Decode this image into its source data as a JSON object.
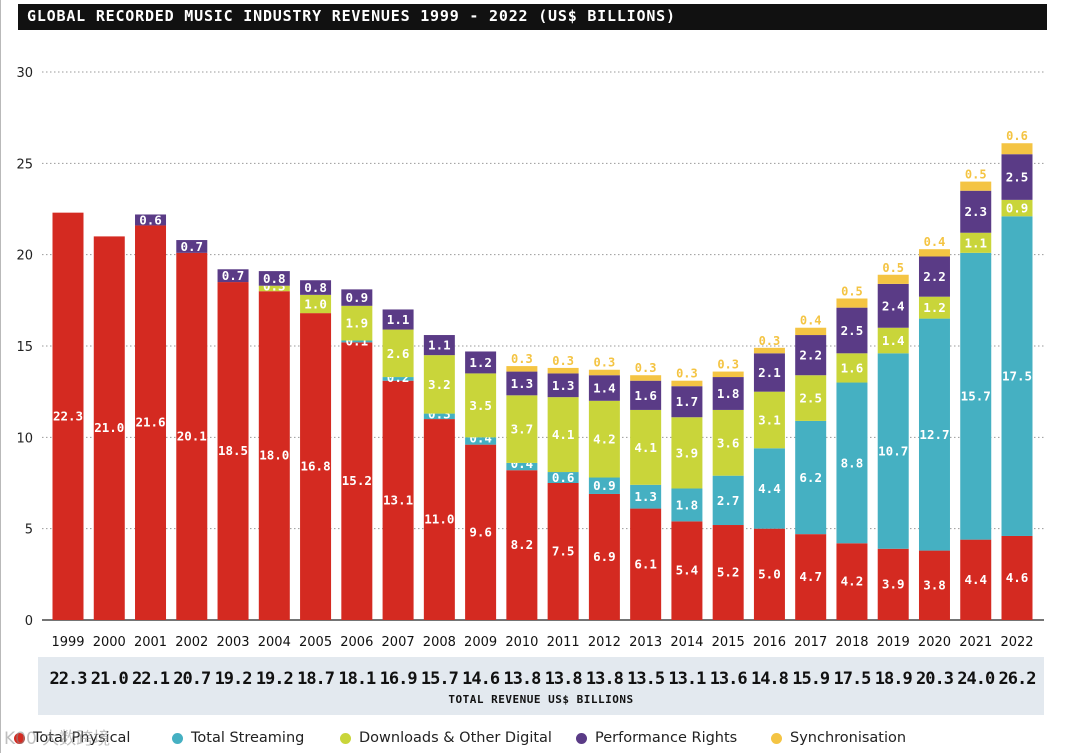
{
  "title": "GLOBAL RECORDED MUSIC INDUSTRY REVENUES 1999 - 2022 (US$ BILLIONS)",
  "totals_label": "TOTAL REVENUE US$ BILLIONS",
  "watermark": "K00 大数跨境",
  "colors": {
    "physical": "#d42a21",
    "streaming": "#45b0c2",
    "downloads": "#c9d53a",
    "performance": "#5a3b86",
    "sync": "#f4c443"
  },
  "chart_data": {
    "type": "bar",
    "stacked": true,
    "title": "GLOBAL RECORDED MUSIC INDUSTRY REVENUES 1999 - 2022 (US$ BILLIONS)",
    "ylim": [
      0,
      30
    ],
    "yticks": [
      0,
      5,
      10,
      15,
      20,
      25,
      30
    ],
    "grid": "horizontal dotted",
    "legend_position": "bottom",
    "categories": [
      "1999",
      "2000",
      "2001",
      "2002",
      "2003",
      "2004",
      "2005",
      "2006",
      "2007",
      "2008",
      "2009",
      "2010",
      "2011",
      "2012",
      "2013",
      "2014",
      "2015",
      "2016",
      "2017",
      "2018",
      "2019",
      "2020",
      "2021",
      "2022"
    ],
    "series": [
      {
        "key": "physical",
        "name": "Total Physical",
        "values": [
          22.3,
          21.0,
          21.6,
          20.1,
          18.5,
          18.0,
          16.8,
          15.2,
          13.1,
          11.0,
          9.6,
          8.2,
          7.5,
          6.9,
          6.1,
          5.4,
          5.2,
          5.0,
          4.7,
          4.2,
          3.9,
          3.8,
          4.4,
          4.6
        ]
      },
      {
        "key": "streaming",
        "name": "Total Streaming",
        "values": [
          null,
          null,
          null,
          null,
          null,
          null,
          null,
          0.1,
          0.2,
          0.3,
          0.4,
          0.4,
          0.6,
          0.9,
          1.3,
          1.8,
          2.7,
          4.4,
          6.2,
          8.8,
          10.7,
          12.7,
          15.7,
          17.5
        ]
      },
      {
        "key": "downloads",
        "name": "Downloads & Other Digital",
        "values": [
          null,
          null,
          null,
          null,
          null,
          0.3,
          1.0,
          1.9,
          2.6,
          3.2,
          3.5,
          3.7,
          4.1,
          4.2,
          4.1,
          3.9,
          3.6,
          3.1,
          2.5,
          1.6,
          1.4,
          1.2,
          1.1,
          0.9
        ]
      },
      {
        "key": "performance",
        "name": "Performance Rights",
        "values": [
          null,
          null,
          0.6,
          0.7,
          0.7,
          0.8,
          0.8,
          0.9,
          1.1,
          1.1,
          1.2,
          1.3,
          1.3,
          1.4,
          1.6,
          1.7,
          1.8,
          2.1,
          2.2,
          2.5,
          2.4,
          2.2,
          2.3,
          2.5
        ]
      },
      {
        "key": "sync",
        "name": "Synchronisation",
        "values": [
          null,
          null,
          null,
          null,
          null,
          null,
          null,
          null,
          null,
          null,
          null,
          0.3,
          0.3,
          0.3,
          0.3,
          0.3,
          0.3,
          0.3,
          0.4,
          0.5,
          0.5,
          0.4,
          0.5,
          0.6
        ]
      }
    ],
    "totals": [
      "22.3",
      "21.0",
      "22.1",
      "20.7",
      "19.2",
      "19.2",
      "18.7",
      "18.1",
      "16.9",
      "15.7",
      "14.6",
      "13.8",
      "13.8",
      "13.8",
      "13.5",
      "13.1",
      "13.6",
      "14.8",
      "15.9",
      "17.5",
      "18.9",
      "20.3",
      "24.0",
      "26.2"
    ]
  }
}
